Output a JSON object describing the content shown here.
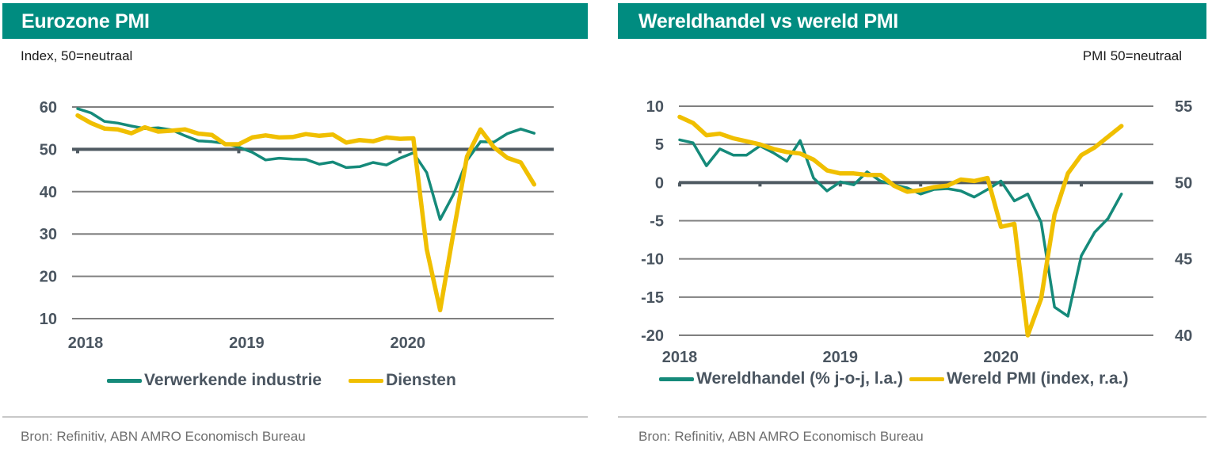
{
  "colors": {
    "header_bg": "#008c80",
    "manufacturing": "#158a7a",
    "services": "#f0bf00",
    "grid": "#7f7f7f",
    "baseline": "#4f5a62"
  },
  "left": {
    "title": "Eurozone PMI",
    "subtitle": "Index, 50=neutraal",
    "source": "Bron: Refinitiv, ABN AMRO Economisch Bureau",
    "legend": [
      "Verwerkende industrie",
      "Diensten"
    ]
  },
  "right": {
    "title": "Wereldhandel vs wereld PMI",
    "subtitle": "PMI 50=neutraal",
    "source": "Bron: Refinitiv, ABN AMRO Economisch Bureau",
    "legend": [
      "Wereldhandel (% j-o-j, l.a.)",
      "Wereld PMI (index, r.a.)"
    ]
  },
  "chart_data": [
    {
      "type": "line",
      "title": "Eurozone PMI",
      "ylabel": "Index, 50=neutraal",
      "x_start": "2018-01",
      "x_frequency": "monthly",
      "x_ticks": [
        "2018",
        "2019",
        "2020"
      ],
      "ylim": [
        10,
        60
      ],
      "y_ticks": [
        10,
        20,
        30,
        40,
        50,
        60
      ],
      "baseline": 50,
      "grid": true,
      "legend_position": "bottom",
      "series": [
        {
          "name": "Verwerkende industrie",
          "color": "#158a7a",
          "values": [
            59.6,
            58.6,
            56.6,
            56.2,
            55.5,
            54.9,
            55.1,
            54.6,
            53.2,
            52.0,
            51.8,
            51.4,
            50.5,
            49.3,
            47.5,
            47.9,
            47.7,
            47.6,
            46.5,
            47.0,
            45.7,
            45.9,
            46.9,
            46.3,
            47.9,
            49.2,
            44.5,
            33.4,
            39.4,
            47.4,
            51.8,
            51.7,
            53.7,
            54.8,
            53.8
          ]
        },
        {
          "name": "Diensten",
          "color": "#f0bf00",
          "values": [
            58.0,
            56.2,
            54.9,
            54.7,
            53.8,
            55.2,
            54.2,
            54.4,
            54.7,
            53.7,
            53.4,
            51.2,
            51.2,
            52.8,
            53.3,
            52.8,
            52.9,
            53.6,
            53.2,
            53.5,
            51.6,
            52.2,
            51.9,
            52.8,
            52.5,
            52.6,
            26.4,
            12.0,
            30.5,
            48.3,
            54.7,
            50.5,
            48.0,
            46.9,
            41.7
          ]
        }
      ]
    },
    {
      "type": "line",
      "title": "Wereldhandel vs wereld PMI",
      "ylabel_right": "PMI 50=neutraal",
      "x_start": "2018-01",
      "x_frequency": "monthly",
      "x_ticks": [
        "2018",
        "2019",
        "2020"
      ],
      "ylim_left": [
        -20,
        10
      ],
      "y_ticks_left": [
        -20,
        -15,
        -10,
        -5,
        0,
        5,
        10
      ],
      "ylim_right": [
        40,
        55
      ],
      "y_ticks_right": [
        40,
        45,
        50,
        55
      ],
      "baseline_left": 0,
      "grid": true,
      "legend_position": "bottom",
      "series": [
        {
          "name": "Wereldhandel (% j-o-j, l.a.)",
          "axis": "left",
          "color": "#158a7a",
          "values": [
            5.6,
            5.2,
            2.2,
            4.4,
            3.6,
            3.6,
            4.8,
            3.9,
            2.8,
            5.5,
            0.6,
            -1.1,
            0.1,
            -0.3,
            1.4,
            0.2,
            -0.3,
            -0.7,
            -1.5,
            -0.9,
            -0.8,
            -1.1,
            -1.9,
            -0.9,
            0.2,
            -2.4,
            -1.5,
            -5.2,
            -16.3,
            -17.5,
            -9.6,
            -6.5,
            -4.7,
            -1.5
          ]
        },
        {
          "name": "Wereld PMI (index, r.a.)",
          "axis": "right",
          "color": "#f0bf00",
          "values": [
            54.3,
            53.9,
            53.1,
            53.2,
            52.9,
            52.7,
            52.5,
            52.2,
            52.0,
            51.9,
            51.5,
            50.8,
            50.6,
            50.6,
            50.5,
            50.5,
            49.8,
            49.4,
            49.5,
            49.7,
            49.8,
            50.2,
            50.1,
            50.3,
            47.1,
            47.3,
            40.0,
            42.4,
            47.9,
            50.6,
            51.8,
            52.3,
            53.0,
            53.7
          ]
        }
      ]
    }
  ]
}
